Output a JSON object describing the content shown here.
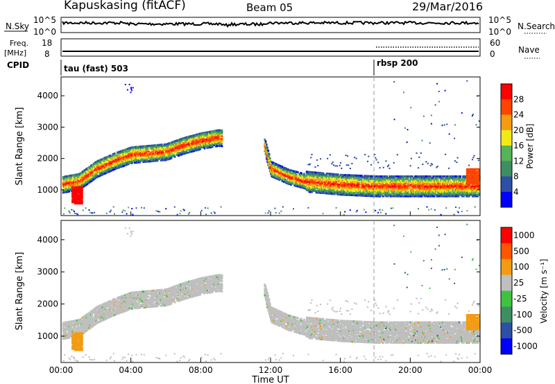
{
  "header": {
    "station": "Kapuskasing (fitACF)",
    "beam": "Beam 05",
    "date": "29/Mar/2016"
  },
  "panel_labels": {
    "nsky": "N.Sky",
    "nsearch": "N.Search",
    "freq_line1": "Freq.",
    "freq_line2": "[MHz]",
    "nave": "Nave",
    "cpid": "CPID",
    "nsky_ticks": [
      "10^5",
      "10^0"
    ],
    "nsearch_ticks": [
      "10^5",
      "10^0"
    ],
    "freq_ticks": [
      "18",
      "8"
    ],
    "nave_ticks": [
      "60",
      "0"
    ]
  },
  "cpid_labels": [
    "tau (fast) 503",
    "rbsp 200"
  ],
  "chart_data": [
    {
      "type": "heatmap",
      "name_panel": "power",
      "ylabel": "Slant Range [km]",
      "yticks": [
        "4000",
        "3000",
        "2000",
        "1000"
      ],
      "ylim": [
        180,
        4600
      ],
      "xlim": [
        0,
        24
      ],
      "colorbar_label": "Power [dB]",
      "colorbar_ticks": [
        "28",
        "24",
        "20",
        "16",
        "12",
        "8",
        "4"
      ],
      "colors": [
        "#0000ff",
        "#2e4fa6",
        "#3e8e63",
        "#56b357",
        "#f2ea17",
        "#f39c12",
        "#ff4400",
        "#ff0000"
      ],
      "echo_band_km": {
        "x_hours": [
          0.0,
          1.0,
          2.0,
          3.0,
          4.0,
          5.0,
          6.0,
          7.0,
          8.0,
          9.0,
          11.6,
          12.0,
          13.0,
          14.0,
          16.0,
          18.0,
          20.0,
          22.0,
          24.0
        ],
        "center_km": [
          1200,
          1300,
          1700,
          1950,
          2150,
          2200,
          2250,
          2450,
          2600,
          2700,
          2500,
          1700,
          1450,
          1300,
          1200,
          1150,
          1150,
          1150,
          1150
        ]
      }
    },
    {
      "type": "heatmap",
      "name_panel": "velocity",
      "ylabel": "Slant Range [km]",
      "yticks": [
        "4000",
        "3000",
        "2000",
        "1000"
      ],
      "ylim": [
        180,
        4600
      ],
      "xlim": [
        0,
        24
      ],
      "colorbar_label": "Velocity [m s⁻¹]",
      "colorbar_ticks": [
        "1000",
        "500",
        "100",
        "25",
        "-25",
        "-100",
        "-500",
        "-1000"
      ],
      "colors": [
        "#0000ff",
        "#2e4fa6",
        "#3e8e63",
        "#3fc33f",
        "#bfbfbf",
        "#f39c12",
        "#ff5500",
        "#ff0000"
      ]
    }
  ],
  "time_axis": {
    "xlabel": "Time UT",
    "ticks": [
      "00:00",
      "04:00",
      "08:00",
      "12:00",
      "16:00",
      "20:00",
      "00:00"
    ]
  }
}
